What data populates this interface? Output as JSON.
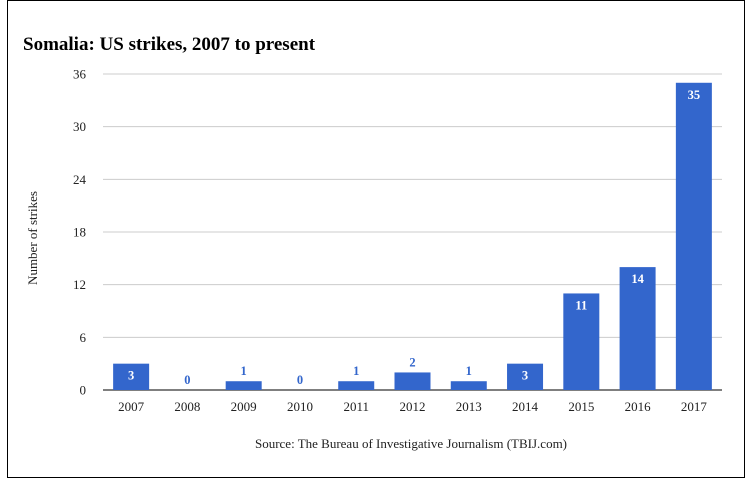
{
  "chart_data": {
    "type": "bar",
    "title": "Somalia: US strikes, 2007 to present",
    "xlabel": "",
    "ylabel": "Number of strikes",
    "source": "Source: The Bureau of Investigative Journalism (TBIJ.com)",
    "categories": [
      "2007",
      "2008",
      "2009",
      "2010",
      "2011",
      "2012",
      "2013",
      "2014",
      "2015",
      "2016",
      "2017"
    ],
    "values": [
      3,
      0,
      1,
      0,
      1,
      2,
      1,
      3,
      11,
      14,
      35
    ],
    "ylim": [
      0,
      36
    ],
    "yticks": [
      0,
      6,
      12,
      18,
      24,
      30,
      36
    ],
    "grid": true,
    "legend": "none",
    "bar_color": "#3366cc",
    "label_inside_color": "#ffffff",
    "label_outside_color": "#3366cc"
  }
}
